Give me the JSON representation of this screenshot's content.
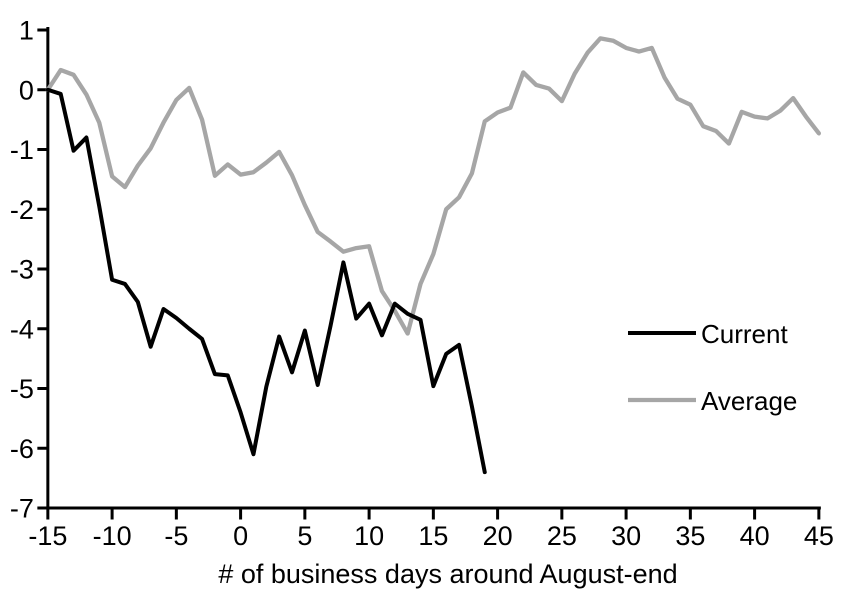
{
  "chart_data": {
    "type": "line",
    "title": "",
    "xlabel": "# of business days around August-end",
    "ylabel": "",
    "xlim": [
      -15,
      45
    ],
    "ylim": [
      -7,
      1
    ],
    "xticks": [
      -15,
      -10,
      -5,
      0,
      5,
      10,
      15,
      20,
      25,
      30,
      35,
      40,
      45
    ],
    "yticks": [
      1,
      0,
      -1,
      -2,
      -3,
      -4,
      -5,
      -6,
      -7
    ],
    "grid": false,
    "legend_position": "middle-right",
    "background_color": "#ffffff",
    "axis_color": "#000000",
    "x": [
      -15,
      -14,
      -13,
      -12,
      -11,
      -10,
      -9,
      -8,
      -7,
      -6,
      -5,
      -4,
      -3,
      -2,
      -1,
      0,
      1,
      2,
      3,
      4,
      5,
      6,
      7,
      8,
      9,
      10,
      11,
      12,
      13,
      14,
      15,
      16,
      17,
      18,
      19,
      20,
      21,
      22,
      23,
      24,
      25,
      26,
      27,
      28,
      29,
      30,
      31,
      32,
      33,
      34,
      35,
      36,
      37,
      38,
      39,
      40,
      41,
      42,
      43,
      44,
      45
    ],
    "series": [
      {
        "name": "Current",
        "color": "#000000",
        "values": [
          0,
          -0.07,
          -1.02,
          -0.8,
          -1.95,
          -3.18,
          -3.25,
          -3.55,
          -4.3,
          -3.67,
          -3.82,
          -4.0,
          -4.17,
          -4.76,
          -4.78,
          -5.4,
          -6.1,
          -4.97,
          -4.13,
          -4.73,
          -4.03,
          -4.94,
          -3.95,
          -2.89,
          -3.83,
          -3.58,
          -4.11,
          -3.58,
          -3.75,
          -3.85,
          -4.96,
          -4.42,
          -4.27,
          -5.3,
          -6.4,
          null,
          null,
          null,
          null,
          null,
          null,
          null,
          null,
          null,
          null,
          null,
          null,
          null,
          null,
          null,
          null,
          null,
          null,
          null,
          null,
          null,
          null,
          null,
          null,
          null,
          null
        ]
      },
      {
        "name": "Average",
        "color": "#a6a6a6",
        "values": [
          0,
          0.33,
          0.25,
          -0.08,
          -0.55,
          -1.45,
          -1.63,
          -1.27,
          -0.98,
          -0.55,
          -0.17,
          0.03,
          -0.5,
          -1.44,
          -1.25,
          -1.42,
          -1.38,
          -1.22,
          -1.04,
          -1.43,
          -1.93,
          -2.38,
          -2.54,
          -2.71,
          -2.65,
          -2.62,
          -3.37,
          -3.7,
          -4.08,
          -3.25,
          -2.75,
          -2.0,
          -1.8,
          -1.4,
          -0.53,
          -0.38,
          -0.3,
          0.29,
          0.08,
          0.02,
          -0.19,
          0.27,
          0.62,
          0.86,
          0.82,
          0.7,
          0.64,
          0.7,
          0.2,
          -0.15,
          -0.25,
          -0.61,
          -0.69,
          -0.9,
          -0.37,
          -0.45,
          -0.48,
          -0.35,
          -0.14,
          -0.45,
          -0.73
        ]
      }
    ]
  }
}
